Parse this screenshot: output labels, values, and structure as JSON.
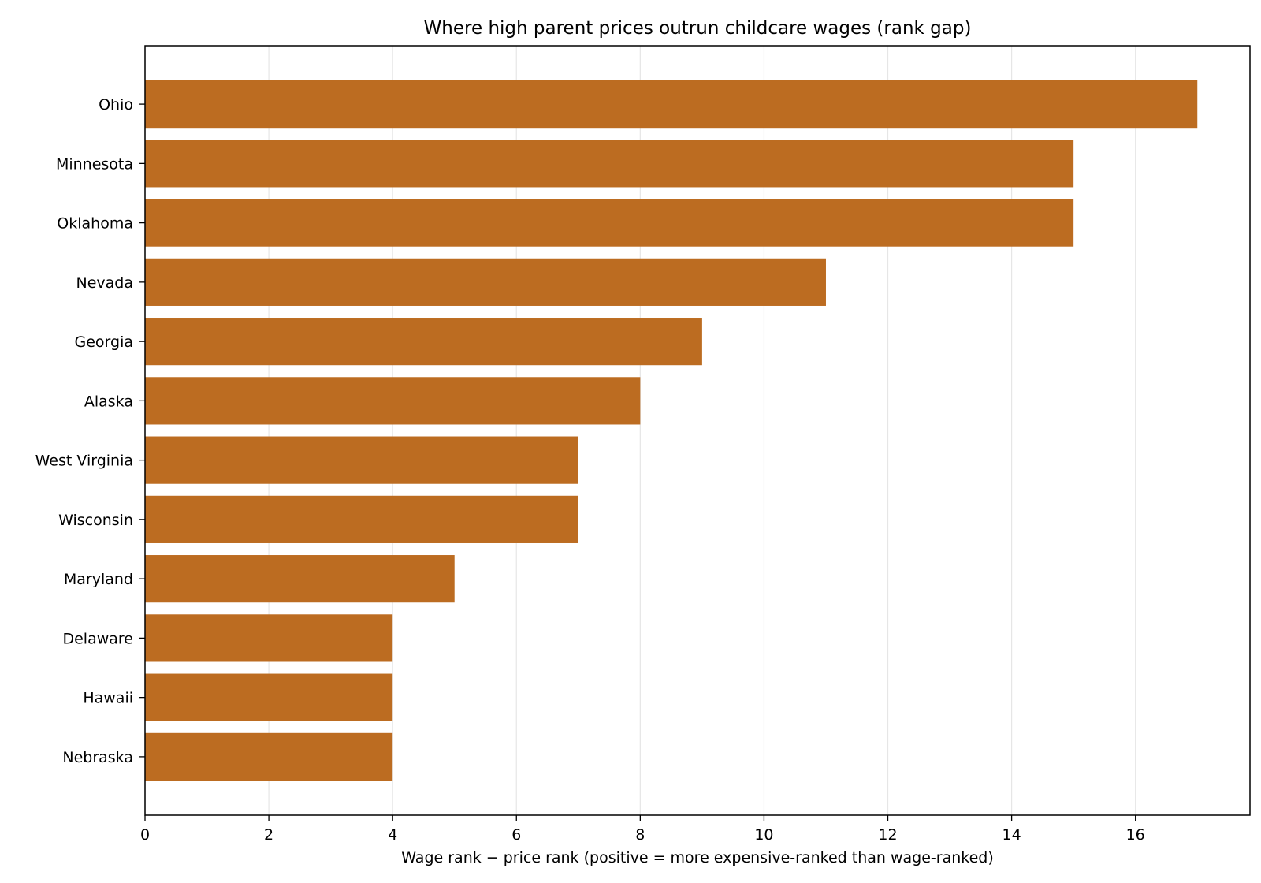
{
  "chart_data": {
    "type": "bar",
    "orientation": "horizontal",
    "title": "Where high parent prices outrun childcare wages (rank gap)",
    "xlabel": "Wage rank − price rank (positive = more expensive-ranked than wage-ranked)",
    "ylabel": "",
    "categories": [
      "Ohio",
      "Minnesota",
      "Oklahoma",
      "Nevada",
      "Georgia",
      "Alaska",
      "West Virginia",
      "Wisconsin",
      "Maryland",
      "Delaware",
      "Hawaii",
      "Nebraska"
    ],
    "values": [
      17,
      15,
      15,
      11,
      9,
      8,
      7,
      7,
      5,
      4,
      4,
      4
    ],
    "xlim": [
      0,
      17.85
    ],
    "xticks": [
      0,
      2,
      4,
      6,
      8,
      10,
      12,
      14,
      16
    ],
    "grid": "vertical",
    "legend": "none",
    "bar_color": "#bc6c21",
    "grid_color": "#e6e6e6"
  }
}
